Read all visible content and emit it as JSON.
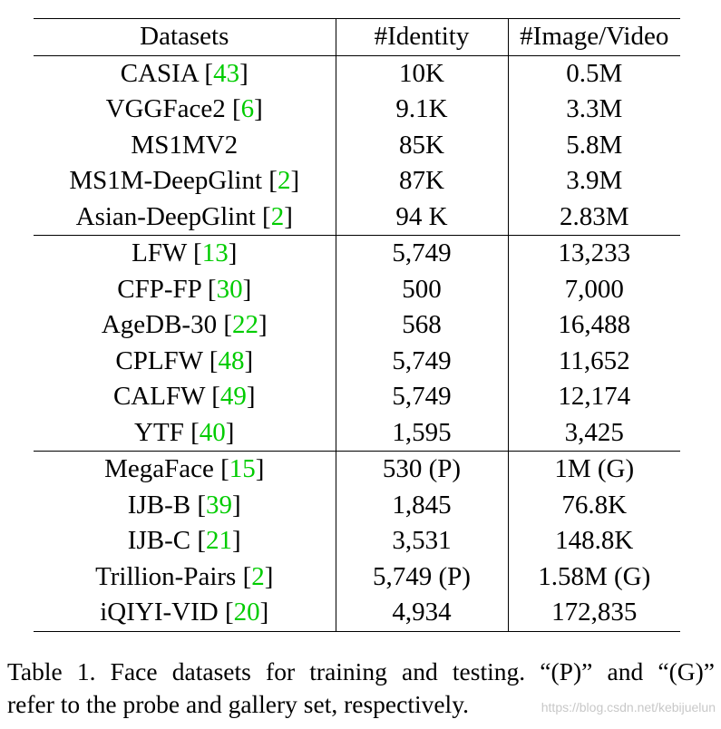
{
  "table": {
    "headers": [
      "Datasets",
      "#Identity",
      "#Image/Video"
    ],
    "groups": [
      [
        {
          "dataset": "CASIA",
          "ref": "43",
          "identity": "10K",
          "images": "0.5M"
        },
        {
          "dataset": "VGGFace2",
          "ref": "6",
          "identity": "9.1K",
          "images": "3.3M"
        },
        {
          "dataset": "MS1MV2",
          "ref": "",
          "identity": "85K",
          "images": "5.8M"
        },
        {
          "dataset": "MS1M-DeepGlint",
          "ref": "2",
          "identity": "87K",
          "images": "3.9M"
        },
        {
          "dataset": "Asian-DeepGlint",
          "ref": "2",
          "identity": "94 K",
          "images": "2.83M"
        }
      ],
      [
        {
          "dataset": "LFW",
          "ref": "13",
          "identity": "5,749",
          "images": "13,233"
        },
        {
          "dataset": "CFP-FP",
          "ref": "30",
          "identity": "500",
          "images": "7,000"
        },
        {
          "dataset": "AgeDB-30",
          "ref": "22",
          "identity": "568",
          "images": "16,488"
        },
        {
          "dataset": "CPLFW",
          "ref": "48",
          "identity": "5,749",
          "images": "11,652"
        },
        {
          "dataset": "CALFW",
          "ref": "49",
          "identity": "5,749",
          "images": "12,174"
        },
        {
          "dataset": "YTF",
          "ref": "40",
          "identity": "1,595",
          "images": "3,425"
        }
      ],
      [
        {
          "dataset": "MegaFace",
          "ref": "15",
          "identity": "530 (P)",
          "images": "1M (G)"
        },
        {
          "dataset": "IJB-B",
          "ref": "39",
          "identity": "1,845",
          "images": "76.8K"
        },
        {
          "dataset": "IJB-C",
          "ref": "21",
          "identity": "3,531",
          "images": "148.8K"
        },
        {
          "dataset": "Trillion-Pairs",
          "ref": "2",
          "identity": "5,749 (P)",
          "images": "1.58M (G)"
        },
        {
          "dataset": "iQIYI-VID",
          "ref": "20",
          "identity": "4,934",
          "images": "172,835"
        }
      ]
    ]
  },
  "caption": {
    "line1": "Table 1. Face datasets for training and testing. “(P)” and “(G)”",
    "line2": "refer to the probe and gallery set, respectively."
  },
  "watermark": "https://blog.csdn.net/kebijuelun",
  "colors": {
    "citation": "#00cc00",
    "watermark": "#c8c8c8"
  }
}
